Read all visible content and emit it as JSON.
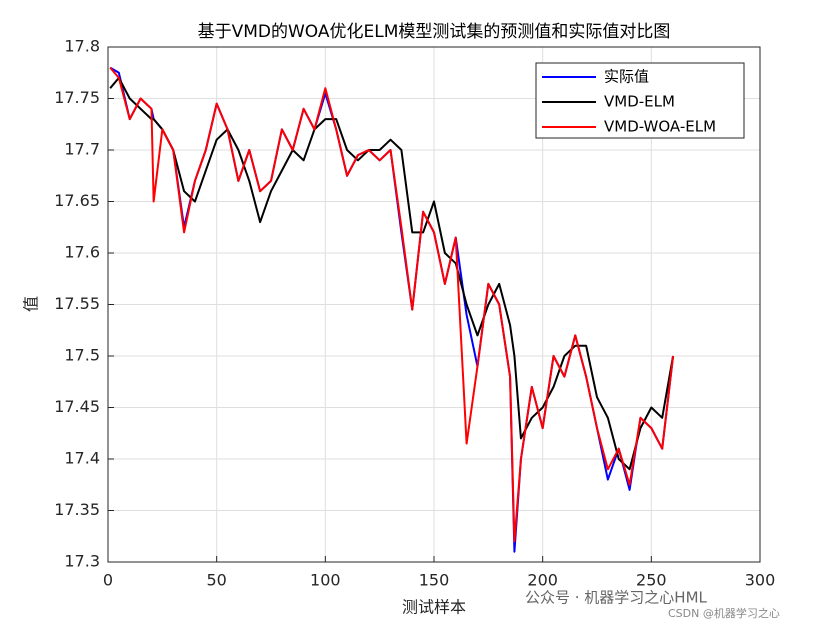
{
  "chart_data": {
    "type": "line",
    "title": "基于VMD的WOA优化ELM模型测试集的预测值和实际值对比图",
    "xlabel": "测试样本",
    "ylabel": "值",
    "x": [
      1,
      5,
      10,
      15,
      20,
      21,
      25,
      30,
      35,
      40,
      45,
      50,
      55,
      60,
      65,
      70,
      75,
      80,
      85,
      90,
      95,
      100,
      105,
      110,
      115,
      120,
      125,
      130,
      135,
      140,
      145,
      150,
      155,
      160,
      165,
      170,
      175,
      180,
      185,
      187,
      190,
      195,
      200,
      205,
      210,
      215,
      220,
      225,
      230,
      235,
      240,
      245,
      250,
      255,
      260
    ],
    "series": [
      {
        "name": "实际值",
        "color": "#0000ff",
        "values": [
          17.78,
          17.775,
          17.73,
          17.75,
          17.74,
          17.73,
          17.72,
          17.7,
          17.625,
          17.67,
          17.7,
          17.745,
          17.72,
          17.67,
          17.7,
          17.66,
          17.67,
          17.72,
          17.7,
          17.74,
          17.72,
          17.755,
          17.72,
          17.675,
          17.695,
          17.7,
          17.69,
          17.7,
          17.62,
          17.545,
          17.64,
          17.62,
          17.57,
          17.615,
          17.54,
          17.49,
          17.57,
          17.55,
          17.48,
          17.31,
          17.4,
          17.47,
          17.43,
          17.5,
          17.48,
          17.52,
          17.48,
          17.43,
          17.38,
          17.41,
          17.37,
          17.44,
          17.43,
          17.41,
          17.5
        ]
      },
      {
        "name": "VMD-ELM",
        "color": "#000000",
        "values": [
          17.76,
          17.77,
          17.75,
          17.74,
          17.73,
          17.73,
          17.72,
          17.7,
          17.66,
          17.65,
          17.68,
          17.71,
          17.72,
          17.7,
          17.67,
          17.63,
          17.66,
          17.68,
          17.7,
          17.69,
          17.72,
          17.73,
          17.73,
          17.7,
          17.69,
          17.7,
          17.7,
          17.71,
          17.7,
          17.62,
          17.62,
          17.65,
          17.6,
          17.59,
          17.55,
          17.52,
          17.55,
          17.57,
          17.53,
          17.5,
          17.42,
          17.44,
          17.45,
          17.47,
          17.5,
          17.51,
          17.51,
          17.46,
          17.44,
          17.4,
          17.39,
          17.43,
          17.45,
          17.44,
          17.5
        ]
      },
      {
        "name": "VMD-WOA-ELM",
        "color": "#ff0000",
        "values": [
          17.78,
          17.77,
          17.73,
          17.75,
          17.74,
          17.65,
          17.72,
          17.7,
          17.62,
          17.67,
          17.7,
          17.745,
          17.72,
          17.67,
          17.7,
          17.66,
          17.67,
          17.72,
          17.7,
          17.74,
          17.72,
          17.76,
          17.72,
          17.675,
          17.695,
          17.7,
          17.69,
          17.7,
          17.625,
          17.545,
          17.64,
          17.62,
          17.57,
          17.615,
          17.415,
          17.49,
          17.57,
          17.55,
          17.48,
          17.32,
          17.4,
          17.47,
          17.43,
          17.5,
          17.48,
          17.52,
          17.48,
          17.43,
          17.39,
          17.41,
          17.375,
          17.44,
          17.43,
          17.41,
          17.5
        ]
      }
    ],
    "xlim": [
      0,
      300
    ],
    "xticks": [
      0,
      50,
      100,
      150,
      200,
      250,
      300
    ],
    "ylim": [
      17.3,
      17.8
    ],
    "yticks": [
      17.3,
      17.35,
      17.4,
      17.45,
      17.5,
      17.55,
      17.6,
      17.65,
      17.7,
      17.75,
      17.8
    ],
    "grid": true,
    "legend": "upper right",
    "watermarks": [
      "公众号 · 机器学习之心HML",
      "CSDN @机器学习之心"
    ]
  }
}
